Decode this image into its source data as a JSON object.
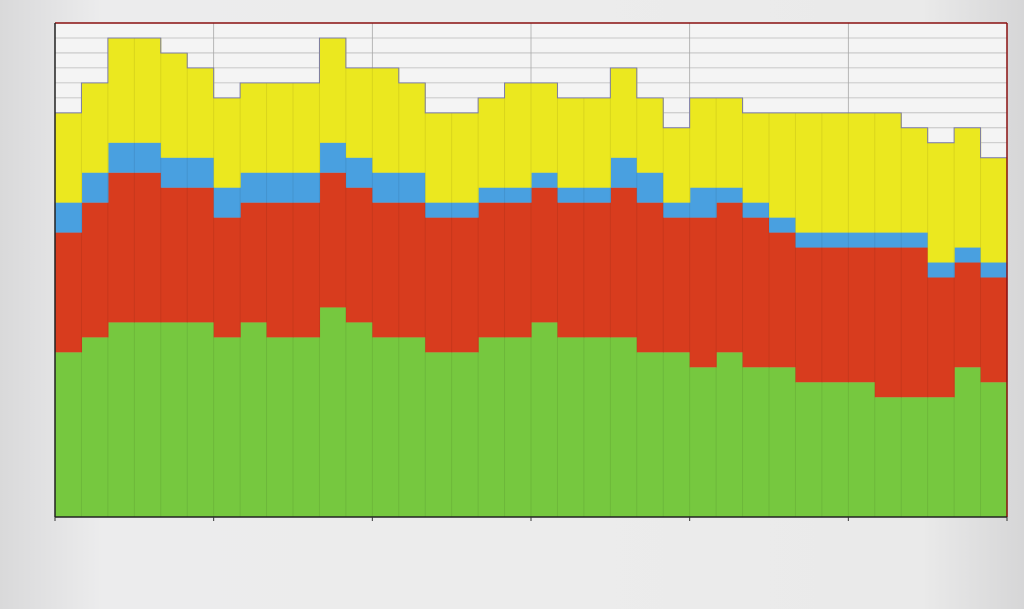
{
  "chart_data": {
    "type": "bar",
    "stacked": true,
    "title": "",
    "xlabel": "",
    "ylabel": "",
    "ylim": [
      0,
      33
    ],
    "grid": true,
    "legend": "none",
    "x": [
      1,
      2,
      3,
      4,
      5,
      6,
      7,
      8,
      9,
      10,
      11,
      12,
      13,
      14,
      15,
      16,
      17,
      18,
      19,
      20,
      21,
      22,
      23,
      24,
      25,
      26,
      27,
      28,
      29,
      30,
      31,
      32,
      33,
      34,
      35,
      36
    ],
    "series": [
      {
        "color": "#76c83f",
        "values": [
          11,
          12,
          13,
          13,
          13,
          13,
          12,
          13,
          12,
          12,
          14,
          13,
          12,
          12,
          11,
          11,
          12,
          12,
          13,
          12,
          12,
          12,
          11,
          11,
          10,
          11,
          10,
          10,
          9,
          9,
          9,
          8,
          8,
          8,
          10,
          9
        ]
      },
      {
        "color": "#d83c1e",
        "values": [
          8,
          9,
          10,
          10,
          9,
          9,
          8,
          8,
          9,
          9,
          9,
          9,
          9,
          9,
          9,
          9,
          9,
          9,
          9,
          9,
          9,
          10,
          10,
          9,
          10,
          10,
          10,
          9,
          9,
          9,
          9,
          10,
          10,
          8,
          7,
          7
        ]
      },
      {
        "color": "#49a0e0",
        "values": [
          2,
          2,
          2,
          2,
          2,
          2,
          2,
          2,
          2,
          2,
          2,
          2,
          2,
          2,
          1,
          1,
          1,
          1,
          1,
          1,
          1,
          2,
          2,
          1,
          2,
          1,
          1,
          1,
          1,
          1,
          1,
          1,
          1,
          1,
          1,
          1
        ]
      },
      {
        "color": "#ebe81f",
        "values": [
          6,
          6,
          7,
          7,
          7,
          6,
          6,
          6,
          6,
          6,
          7,
          6,
          7,
          6,
          6,
          6,
          6,
          7,
          6,
          6,
          6,
          6,
          5,
          5,
          6,
          6,
          6,
          7,
          8,
          8,
          8,
          8,
          7,
          8,
          8,
          7
        ]
      }
    ]
  }
}
